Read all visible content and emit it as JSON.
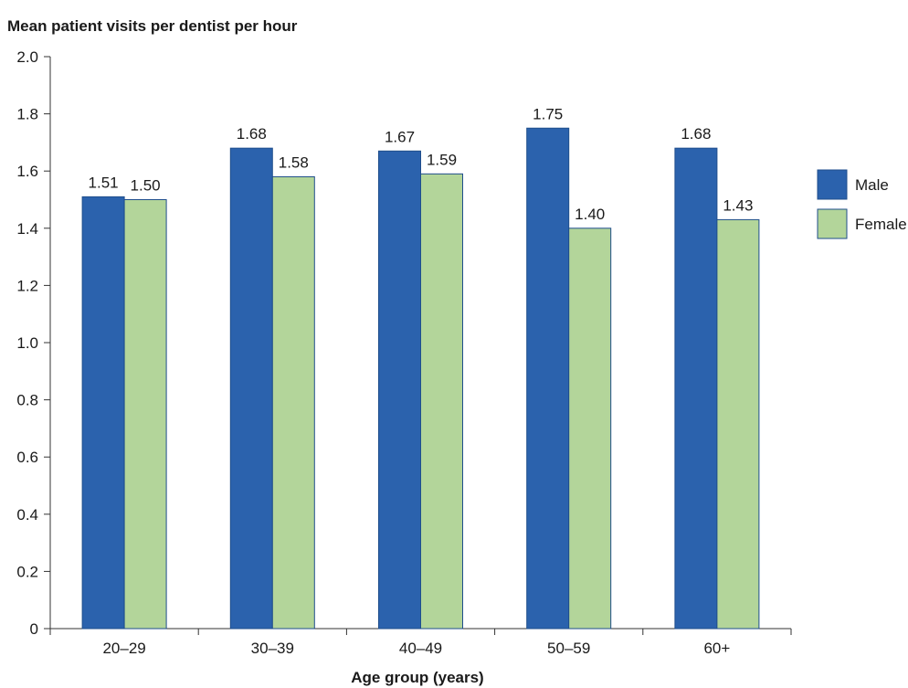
{
  "chart_data": {
    "type": "bar",
    "title": "Mean patient visits per dentist per hour",
    "xlabel": "Age group (years)",
    "ylabel": "",
    "categories": [
      "20–29",
      "30–39",
      "40–49",
      "50–59",
      "60+"
    ],
    "series": [
      {
        "name": "Male",
        "values": [
          1.51,
          1.68,
          1.67,
          1.75,
          1.68
        ],
        "color": "#2b62ad",
        "value_labels": [
          "1.51",
          "1.68",
          "1.67",
          "1.75",
          "1.68"
        ]
      },
      {
        "name": "Female",
        "values": [
          1.5,
          1.58,
          1.59,
          1.4,
          1.43
        ],
        "color": "#b3d59a",
        "value_labels": [
          "1.50",
          "1.58",
          "1.59",
          "1.40",
          "1.43"
        ]
      }
    ],
    "ylim": [
      0,
      2.0
    ],
    "yticks": [
      0,
      0.2,
      0.4,
      0.6,
      0.8,
      1.0,
      1.2,
      1.4,
      1.6,
      1.8,
      2.0
    ],
    "ytick_labels": [
      "0",
      "0.2",
      "0.4",
      "0.6",
      "0.8",
      "1.0",
      "1.2",
      "1.4",
      "1.6",
      "1.8",
      "2.0"
    ],
    "grid": false,
    "legend_position": "right"
  }
}
